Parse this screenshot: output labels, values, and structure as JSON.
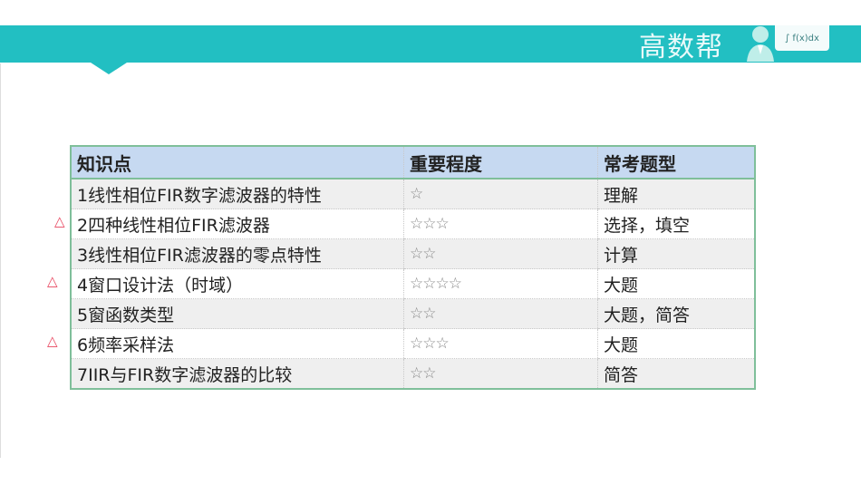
{
  "header": {
    "brand": "高数帮",
    "formula": "∫ f(x)dx",
    "accent": "#22bfc2"
  },
  "table": {
    "columns": [
      "知识点",
      "重要程度",
      "常考题型"
    ],
    "rows": [
      {
        "topic": "1线性相位FIR数字滤波器的特性",
        "stars": "☆",
        "type": "理解",
        "marked": false
      },
      {
        "topic": "2四种线性相位FIR滤波器",
        "stars": "☆☆☆",
        "type": "选择，填空",
        "marked": true
      },
      {
        "topic": "3线性相位FIR滤波器的零点特性",
        "stars": "☆☆",
        "type": "计算",
        "marked": false
      },
      {
        "topic": "4窗口设计法（时域）",
        "stars": "☆☆☆☆",
        "type": "大题",
        "marked": true
      },
      {
        "topic": "5窗函数类型",
        "stars": "☆☆",
        "type": "大题，简答",
        "marked": false
      },
      {
        "topic": "6频率采样法",
        "stars": "☆☆☆",
        "type": "大题",
        "marked": true
      },
      {
        "topic": "7IIR与FIR数字滤波器的比较",
        "stars": "☆☆",
        "type": "简答",
        "marked": false
      }
    ]
  }
}
